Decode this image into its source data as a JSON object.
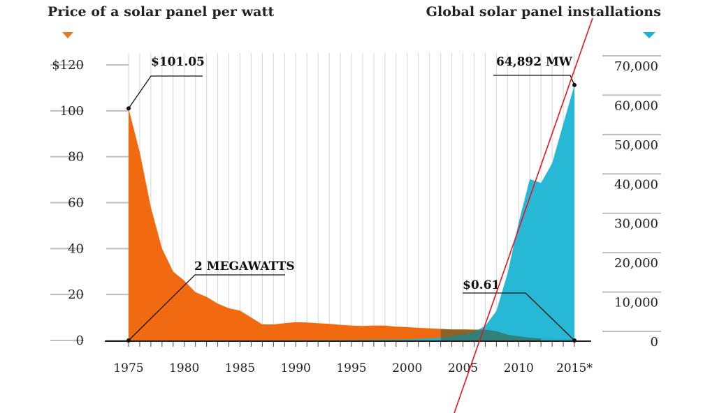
{
  "chart_data": {
    "type": "area",
    "left_title": "Price of a solar panel per watt",
    "right_title": "Global solar panel installations",
    "x_ticks": [
      "1975",
      "1980",
      "1985",
      "1990",
      "1995",
      "2000",
      "2005",
      "2010",
      "2015*"
    ],
    "y_left_ticks": [
      "$120",
      "100",
      "80",
      "60",
      "40",
      "20",
      "0"
    ],
    "y_right_ticks": [
      "70,000",
      "60,000",
      "50,000",
      "40,000",
      "30,000",
      "20,000",
      "10,000",
      "0"
    ],
    "y_left_range": [
      0,
      120
    ],
    "y_right_range": [
      0,
      70000
    ],
    "x_range": [
      1975,
      2015
    ],
    "series": [
      {
        "name": "Price of a solar panel per watt",
        "axis": "left",
        "color": "#f26a10",
        "x": [
          1975,
          1976,
          1977,
          1978,
          1979,
          1980,
          1981,
          1982,
          1983,
          1984,
          1985,
          1986,
          1987,
          1988,
          1989,
          1990,
          1991,
          1992,
          1993,
          1994,
          1995,
          1996,
          1997,
          1998,
          1999,
          2000,
          2001,
          2002,
          2003,
          2004,
          2005,
          2006,
          2007,
          2008,
          2009,
          2010,
          2011,
          2012,
          2013,
          2014,
          2015
        ],
        "values": [
          101.05,
          82,
          58,
          40,
          30,
          26,
          21,
          19,
          16,
          14,
          13,
          10,
          7,
          7,
          7.5,
          8,
          7.8,
          7.5,
          7.2,
          6.8,
          6.5,
          6.3,
          6.5,
          6.5,
          6,
          5.8,
          5.5,
          5.3,
          5,
          4.8,
          4.8,
          4.7,
          4.7,
          4,
          2.5,
          1.8,
          1.2,
          0.9,
          0.8,
          0.7,
          0.61
        ]
      },
      {
        "name": "Global solar panel installations",
        "axis": "right",
        "color": "#1ab4d2",
        "x": [
          1975,
          1980,
          1985,
          1990,
          1995,
          2000,
          2003,
          2005,
          2006,
          2007,
          2008,
          2009,
          2010,
          2011,
          2012,
          2013,
          2014,
          2015
        ],
        "values": [
          2,
          5,
          10,
          30,
          80,
          280,
          700,
          1500,
          2100,
          3700,
          7500,
          17000,
          30000,
          41000,
          40000,
          45000,
          55000,
          64892
        ]
      }
    ],
    "annotations": [
      {
        "label": "$101.05",
        "series": "Price of a solar panel per watt",
        "x": 1975,
        "y": 101.05
      },
      {
        "label": "2 MEGAWATTS",
        "series": "Global solar panel installations",
        "x": 1975,
        "y": 2
      },
      {
        "label": "$0.61",
        "series": "Price of a solar panel per watt",
        "x": 2015,
        "y": 0.61
      },
      {
        "label": "64,892 MW",
        "series": "Global solar panel installations",
        "x": 2015,
        "y": 64892
      }
    ]
  }
}
